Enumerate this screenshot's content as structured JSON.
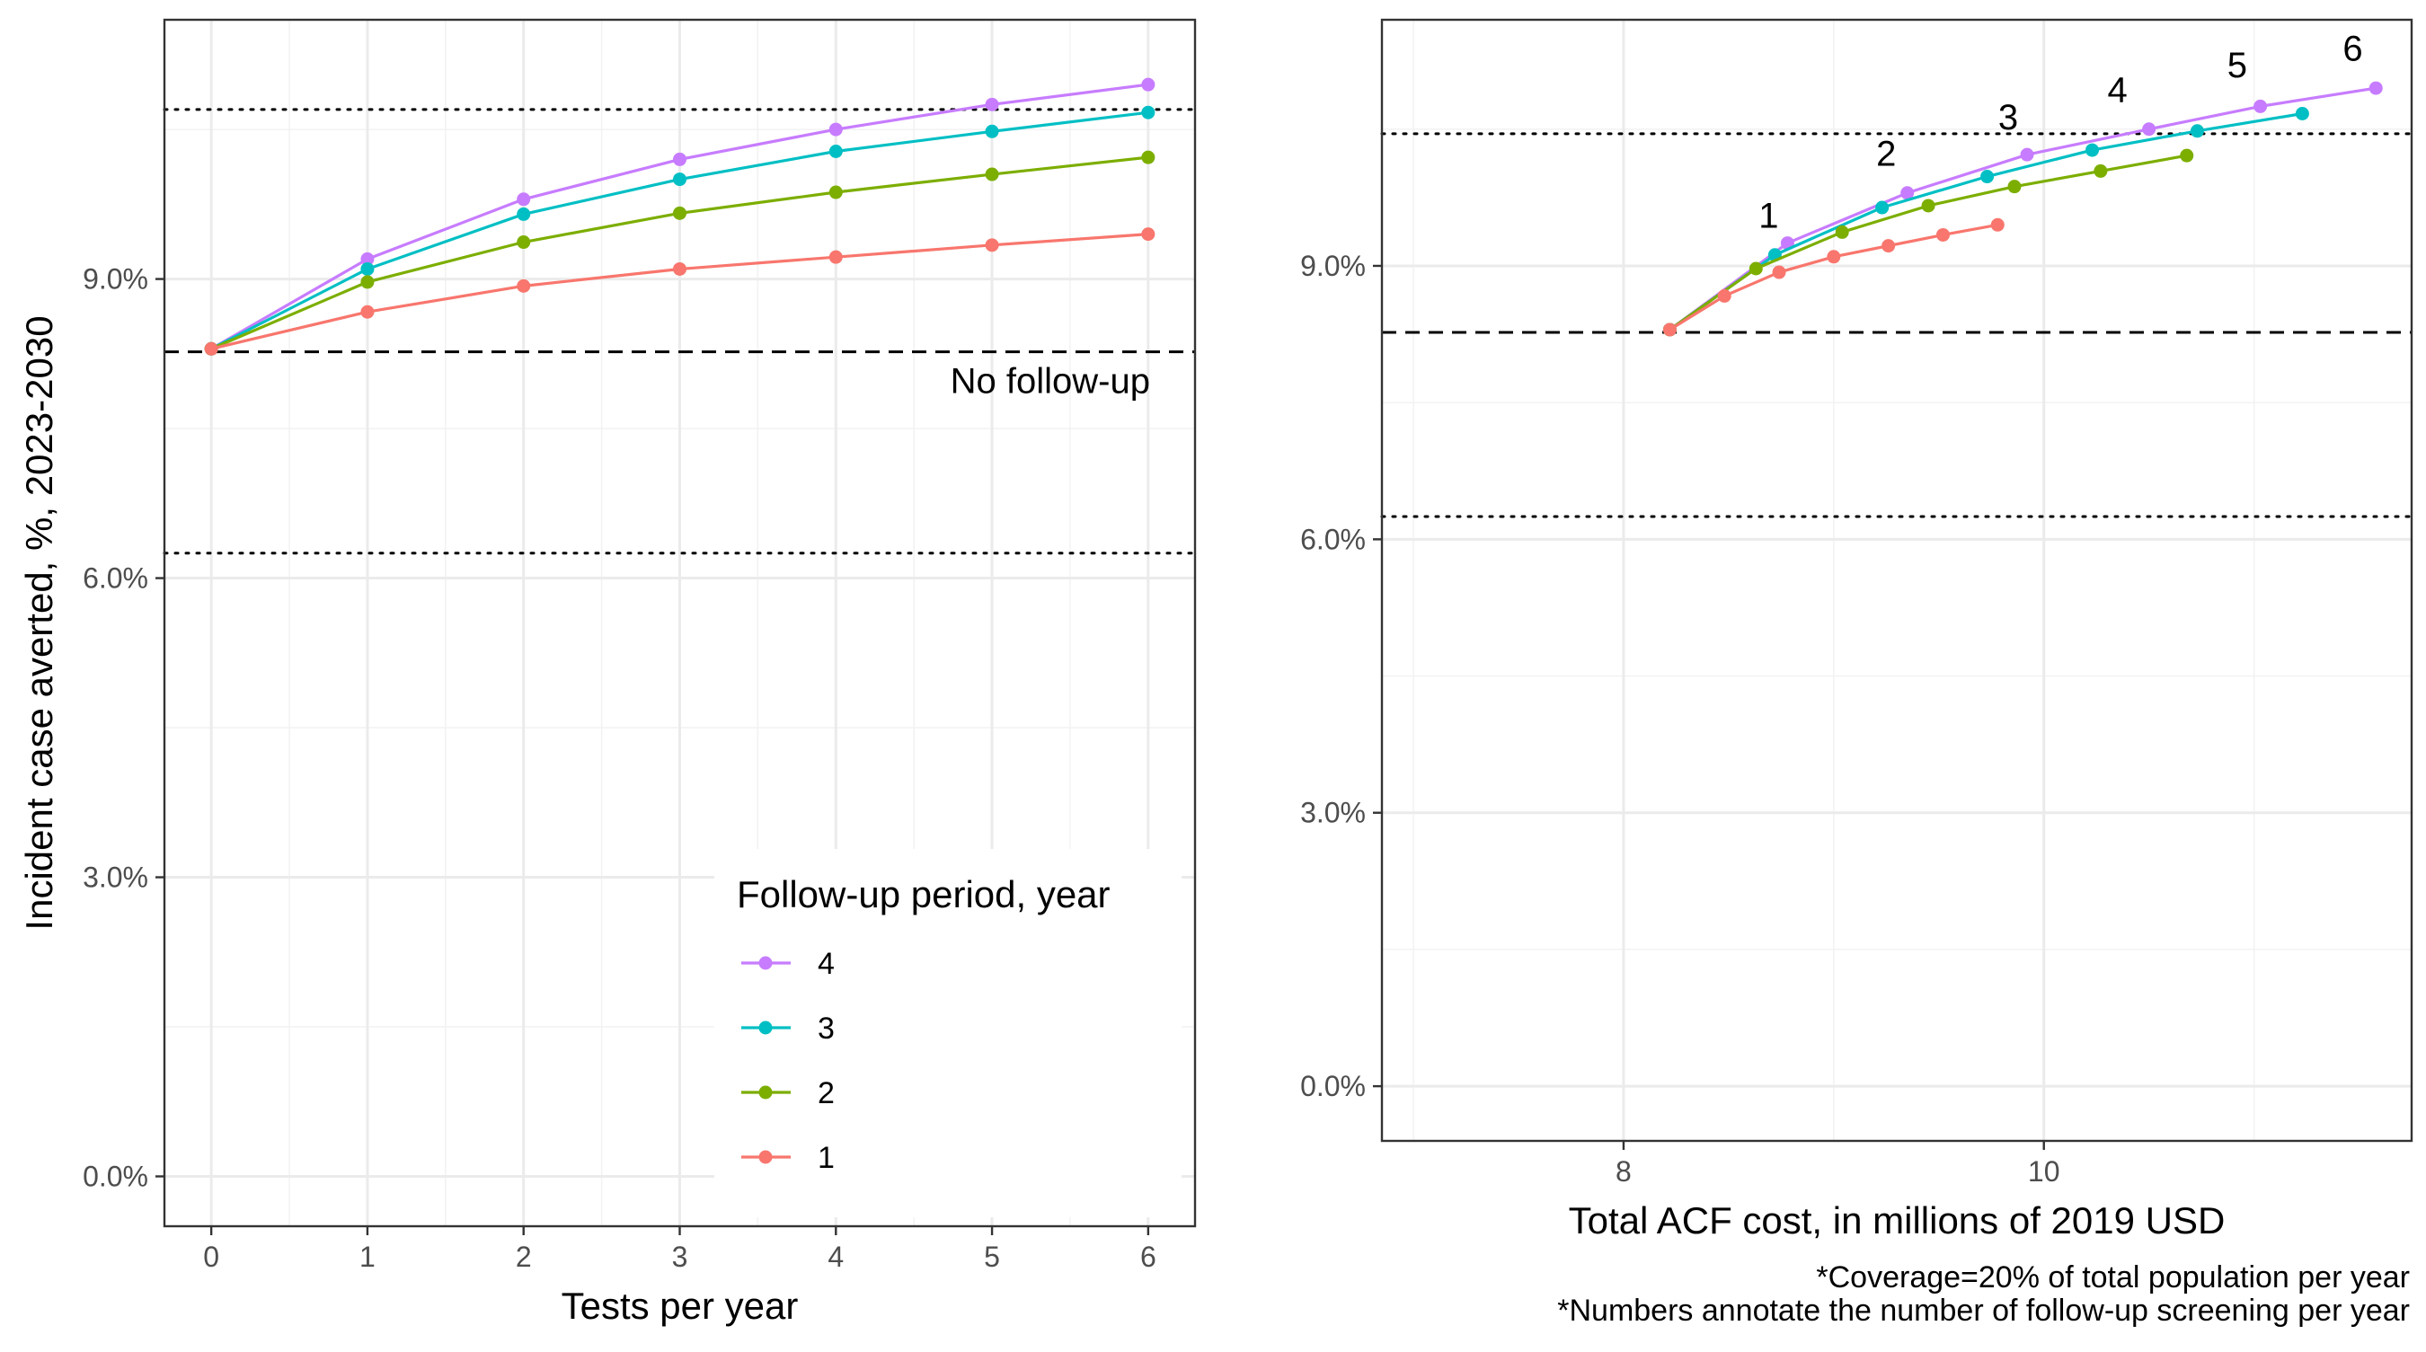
{
  "chart_data": [
    {
      "type": "line",
      "xlabel": "Tests per year",
      "ylabel": "Incident case averted, %, 2023-2030",
      "xlim": [
        -0.3,
        6.3
      ],
      "ylim": [
        -0.5,
        11.6
      ],
      "x_ticks": [
        0,
        1,
        2,
        3,
        4,
        5,
        6
      ],
      "x_tick_labels": [
        "0",
        "1",
        "2",
        "3",
        "4",
        "5",
        "6"
      ],
      "y_ticks": [
        0,
        3,
        6,
        9
      ],
      "y_tick_labels": [
        "0.0%",
        "3.0%",
        "6.0%",
        "9.0%"
      ],
      "grid": true,
      "legend_title": "Follow-up period, year",
      "legend_position": "bottom-right",
      "series": [
        {
          "name": "4",
          "color": "#C77CFF",
          "x": [
            0,
            1,
            2,
            3,
            4,
            5,
            6
          ],
          "y": [
            8.3,
            9.2,
            9.8,
            10.2,
            10.5,
            10.75,
            10.95
          ]
        },
        {
          "name": "3",
          "color": "#00BFC4",
          "x": [
            0,
            1,
            2,
            3,
            4,
            5,
            6
          ],
          "y": [
            8.3,
            9.1,
            9.65,
            10.0,
            10.28,
            10.48,
            10.67
          ]
        },
        {
          "name": "2",
          "color": "#7CAE00",
          "x": [
            0,
            1,
            2,
            3,
            4,
            5,
            6
          ],
          "y": [
            8.3,
            8.97,
            9.37,
            9.66,
            9.87,
            10.05,
            10.22
          ]
        },
        {
          "name": "1",
          "color": "#F8766D",
          "x": [
            0,
            1,
            2,
            3,
            4,
            5,
            6
          ],
          "y": [
            8.3,
            8.67,
            8.93,
            9.1,
            9.22,
            9.34,
            9.45
          ]
        }
      ],
      "reference_lines": [
        {
          "y": 10.7,
          "style": "dotted"
        },
        {
          "y": 8.27,
          "style": "dashed",
          "label": "No follow-up"
        },
        {
          "y": 6.25,
          "style": "dotted"
        }
      ]
    },
    {
      "type": "line",
      "xlabel": "Total ACF cost, in millions of 2019 USD",
      "ylabel": "",
      "xlim": [
        6.85,
        11.75
      ],
      "ylim": [
        -0.6,
        11.7
      ],
      "x_ticks": [
        8,
        10
      ],
      "x_tick_labels": [
        "8",
        "10"
      ],
      "y_ticks": [
        0,
        3,
        6,
        9
      ],
      "y_tick_labels": [
        "0.0%",
        "3.0%",
        "6.0%",
        "9.0%"
      ],
      "grid": true,
      "series": [
        {
          "name": "4",
          "color": "#C77CFF",
          "x": [
            8.22,
            8.78,
            9.35,
            9.92,
            10.5,
            11.03,
            11.58
          ],
          "y": [
            8.3,
            9.25,
            9.8,
            10.22,
            10.5,
            10.75,
            10.95
          ]
        },
        {
          "name": "3",
          "color": "#00BFC4",
          "x": [
            8.22,
            8.72,
            9.23,
            9.73,
            10.23,
            10.73,
            11.23
          ],
          "y": [
            8.3,
            9.12,
            9.64,
            9.98,
            10.27,
            10.48,
            10.67
          ]
        },
        {
          "name": "2",
          "color": "#7CAE00",
          "x": [
            8.22,
            8.63,
            9.04,
            9.45,
            9.86,
            10.27,
            10.68
          ],
          "y": [
            8.3,
            8.97,
            9.37,
            9.66,
            9.87,
            10.04,
            10.21
          ]
        },
        {
          "name": "1",
          "color": "#F8766D",
          "x": [
            8.22,
            8.48,
            8.74,
            9.0,
            9.26,
            9.52,
            9.78
          ],
          "y": [
            8.3,
            8.67,
            8.93,
            9.1,
            9.22,
            9.34,
            9.45
          ]
        }
      ],
      "point_annotations": [
        {
          "x": 8.69,
          "y": 9.42,
          "text": "1"
        },
        {
          "x": 9.25,
          "y": 10.1,
          "text": "2"
        },
        {
          "x": 9.83,
          "y": 10.5,
          "text": "3"
        },
        {
          "x": 10.35,
          "y": 10.8,
          "text": "4"
        },
        {
          "x": 10.92,
          "y": 11.07,
          "text": "5"
        },
        {
          "x": 11.47,
          "y": 11.25,
          "text": "6"
        }
      ],
      "reference_lines": [
        {
          "y": 10.45,
          "style": "dotted"
        },
        {
          "y": 8.27,
          "style": "dashed"
        },
        {
          "y": 6.25,
          "style": "dotted"
        }
      ]
    }
  ],
  "footnotes": [
    "*Coverage=20% of total population per year",
    "*Numbers annotate the number of follow-up screening per year"
  ]
}
